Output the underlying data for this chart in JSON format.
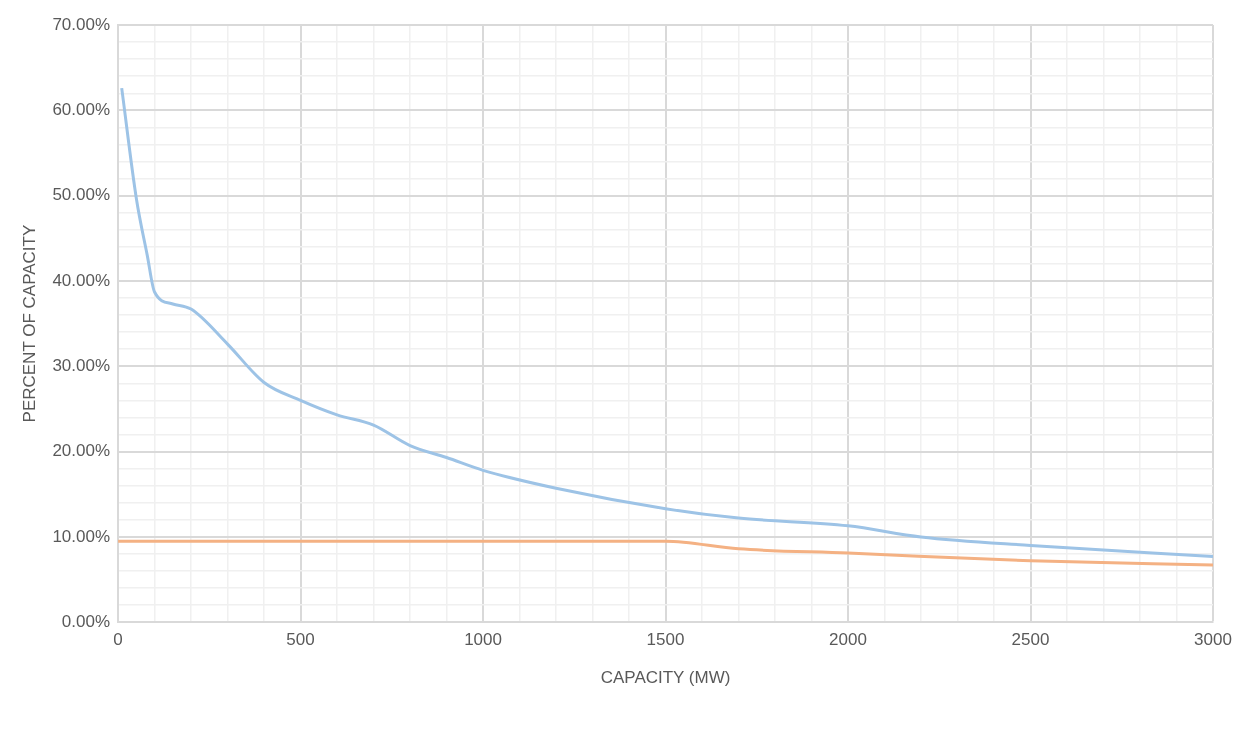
{
  "chart_data": {
    "type": "line",
    "xlabel": "CAPACITY (MW)",
    "ylabel": "PERCENT OF CAPACITY",
    "xlim": [
      0,
      3000
    ],
    "xticks": [
      0,
      {
        "value": 100,
        "label": null
      },
      {
        "value": 200,
        "label": null
      },
      {
        "value": 300,
        "label": null
      },
      {
        "value": 400,
        "label": null
      },
      500,
      {
        "value": 600,
        "label": null
      },
      {
        "value": 700,
        "label": null
      },
      {
        "value": 800,
        "label": null
      },
      {
        "value": 900,
        "label": null
      },
      1000,
      {
        "value": 1100,
        "label": null
      },
      {
        "value": 1200,
        "label": null
      },
      {
        "value": 1300,
        "label": null
      },
      {
        "value": 1400,
        "label": null
      },
      1500,
      {
        "value": 1600,
        "label": null
      },
      {
        "value": 1700,
        "label": null
      },
      {
        "value": 1800,
        "label": null
      },
      {
        "value": 1900,
        "label": null
      },
      2000,
      {
        "value": 2100,
        "label": null
      },
      {
        "value": 2200,
        "label": null
      },
      {
        "value": 2300,
        "label": null
      },
      {
        "value": 2400,
        "label": null
      },
      2500,
      {
        "value": 2600,
        "label": null
      },
      {
        "value": 2700,
        "label": null
      },
      {
        "value": 2800,
        "label": null
      },
      {
        "value": 2900,
        "label": null
      },
      3000
    ],
    "ylim": [
      0,
      70
    ],
    "yticks": [
      {
        "value": 0,
        "label": "0.00%"
      },
      {
        "value": 2,
        "label": null
      },
      {
        "value": 4,
        "label": null
      },
      {
        "value": 6,
        "label": null
      },
      {
        "value": 8,
        "label": null
      },
      {
        "value": 10,
        "label": "10.00%"
      },
      {
        "value": 12,
        "label": null
      },
      {
        "value": 14,
        "label": null
      },
      {
        "value": 16,
        "label": null
      },
      {
        "value": 18,
        "label": null
      },
      {
        "value": 20,
        "label": "20.00%"
      },
      {
        "value": 22,
        "label": null
      },
      {
        "value": 24,
        "label": null
      },
      {
        "value": 26,
        "label": null
      },
      {
        "value": 28,
        "label": null
      },
      {
        "value": 30,
        "label": "30.00%"
      },
      {
        "value": 32,
        "label": null
      },
      {
        "value": 34,
        "label": null
      },
      {
        "value": 36,
        "label": null
      },
      {
        "value": 38,
        "label": null
      },
      {
        "value": 40,
        "label": "40.00%"
      },
      {
        "value": 42,
        "label": null
      },
      {
        "value": 44,
        "label": null
      },
      {
        "value": 46,
        "label": null
      },
      {
        "value": 48,
        "label": null
      },
      {
        "value": 50,
        "label": "50.00%"
      },
      {
        "value": 52,
        "label": null
      },
      {
        "value": 54,
        "label": null
      },
      {
        "value": 56,
        "label": null
      },
      {
        "value": 58,
        "label": null
      },
      {
        "value": 60,
        "label": "60.00%"
      },
      {
        "value": 62,
        "label": null
      },
      {
        "value": 64,
        "label": null
      },
      {
        "value": 66,
        "label": null
      },
      {
        "value": 68,
        "label": null
      },
      {
        "value": 70,
        "label": "70.00%"
      }
    ],
    "grid": true,
    "legend": false,
    "marker": "none",
    "line_style": "solid",
    "series": [
      {
        "color": "#9dc3e6",
        "x": [
          10,
          50,
          80,
          100,
          150,
          200,
          300,
          400,
          500,
          600,
          700,
          800,
          900,
          1000,
          1200,
          1500,
          1700,
          2000,
          2200,
          2500,
          3000
        ],
        "values": [
          62.6,
          49.7,
          43.0,
          38.7,
          37.3,
          36.7,
          32.6,
          28.1,
          26.0,
          24.3,
          23.1,
          20.7,
          19.3,
          17.8,
          15.7,
          13.3,
          12.2,
          11.3,
          10.0,
          9.0,
          7.7
        ]
      },
      {
        "color": "#f4b183",
        "x": [
          0,
          500,
          1000,
          1500,
          1700,
          2000,
          2500,
          3000
        ],
        "values": [
          9.5,
          9.5,
          9.5,
          9.5,
          8.6,
          8.1,
          7.2,
          6.7
        ]
      }
    ]
  }
}
